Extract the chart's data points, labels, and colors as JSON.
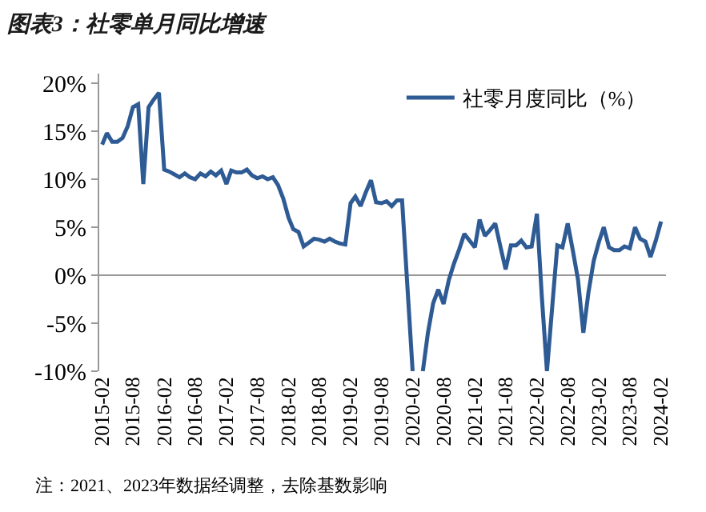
{
  "chart_data": {
    "type": "line",
    "title": "图表3：社零单月同比增速",
    "annotations": [
      "注：2021、2023年数据经调整，去除基数影响"
    ],
    "legend": "top",
    "marker": "none",
    "line_style": "solid",
    "xlim": [
      "2015-01-15",
      "2024-03-01"
    ],
    "xticks": [
      "2015-02",
      "2015-08",
      "2016-02",
      "2016-08",
      "2017-02",
      "2017-08",
      "2018-02",
      "2018-08",
      "2019-02",
      "2019-08",
      "2020-02",
      "2020-08",
      "2021-02",
      "2021-08",
      "2022-02",
      "2022-08",
      "2023-02",
      "2023-08",
      "2024-02"
    ],
    "ylim": [
      -10,
      21
    ],
    "yticks": [
      {
        "value": -10,
        "label": "-10%"
      },
      {
        "value": -5,
        "label": "-5%"
      },
      {
        "value": 0,
        "label": "0%"
      },
      {
        "value": 5,
        "label": "5%"
      },
      {
        "value": 10,
        "label": "10%"
      },
      {
        "value": 15,
        "label": "15%"
      },
      {
        "value": 20,
        "label": "20%"
      }
    ],
    "series": [
      {
        "name": "社零月度同比（%）",
        "color": "#2e5b94",
        "x": [
          "2015-02",
          "2015-03",
          "2015-04",
          "2015-05",
          "2015-06",
          "2015-07",
          "2015-08",
          "2015-09",
          "2015-10",
          "2015-11",
          "2015-12",
          "2016-01",
          "2016-02",
          "2016-03",
          "2016-04",
          "2016-05",
          "2016-06",
          "2016-07",
          "2016-08",
          "2016-09",
          "2016-10",
          "2016-11",
          "2016-12",
          "2017-01",
          "2017-02",
          "2017-03",
          "2017-04",
          "2017-05",
          "2017-06",
          "2017-07",
          "2017-08",
          "2017-09",
          "2017-10",
          "2017-11",
          "2017-12",
          "2018-01",
          "2018-02",
          "2018-03",
          "2018-04",
          "2018-05",
          "2018-06",
          "2018-07",
          "2018-08",
          "2018-09",
          "2018-10",
          "2018-11",
          "2018-12",
          "2019-01",
          "2019-02",
          "2019-03",
          "2019-04",
          "2019-05",
          "2019-06",
          "2019-07",
          "2019-08",
          "2019-09",
          "2019-10",
          "2019-11",
          "2019-12",
          "2020-02",
          "2020-03",
          "2020-04",
          "2020-05",
          "2020-06",
          "2020-07",
          "2020-08",
          "2020-09",
          "2020-10",
          "2020-11",
          "2020-12",
          "2021-01",
          "2021-02",
          "2021-03",
          "2021-04",
          "2021-05",
          "2021-06",
          "2021-07",
          "2021-08",
          "2021-09",
          "2021-10",
          "2021-11",
          "2021-12",
          "2022-01",
          "2022-02",
          "2022-03",
          "2022-04",
          "2022-05",
          "2022-06",
          "2022-07",
          "2022-08",
          "2022-09",
          "2022-10",
          "2022-11",
          "2022-12",
          "2023-01",
          "2023-02",
          "2023-03",
          "2023-04",
          "2023-05",
          "2023-06",
          "2023-07",
          "2023-08",
          "2023-09",
          "2023-10",
          "2023-11",
          "2023-12",
          "2024-01",
          "2024-02"
        ],
        "values": [
          13.6,
          14.8,
          13.9,
          13.9,
          14.3,
          15.5,
          17.5,
          17.8,
          9.5,
          17.5,
          18.3,
          19.0,
          11.0,
          10.8,
          10.5,
          10.2,
          10.6,
          10.2,
          10.0,
          10.6,
          10.3,
          10.8,
          10.4,
          10.9,
          9.5,
          10.9,
          10.7,
          10.7,
          11.0,
          10.4,
          10.1,
          10.3,
          10.0,
          10.2,
          9.4,
          8.0,
          6.0,
          4.8,
          4.5,
          3.0,
          3.4,
          3.8,
          3.7,
          3.5,
          3.8,
          3.5,
          3.3,
          3.2,
          7.5,
          8.2,
          7.2,
          8.6,
          9.9,
          7.6,
          7.5,
          7.7,
          7.2,
          7.8,
          7.8,
          -10,
          null,
          -10,
          -6,
          -2.9,
          -1.5,
          -3,
          -0.5,
          1.2,
          2.7,
          4.3,
          3.6,
          2.9,
          5.8,
          4.1,
          4.7,
          5.4,
          3.0,
          0.6,
          3.1,
          3.1,
          3.6,
          2.9,
          3.0,
          6.4,
          -2,
          -10,
          -3.5,
          3.1,
          2.9,
          5.4,
          2.5,
          -0.5,
          -6,
          -1.8,
          1.5,
          3.5,
          5.0,
          2.9,
          2.6,
          2.6,
          3.0,
          2.8,
          5.0,
          3.8,
          3.5,
          1.9,
          3.6,
          5.6
        ]
      }
    ]
  }
}
